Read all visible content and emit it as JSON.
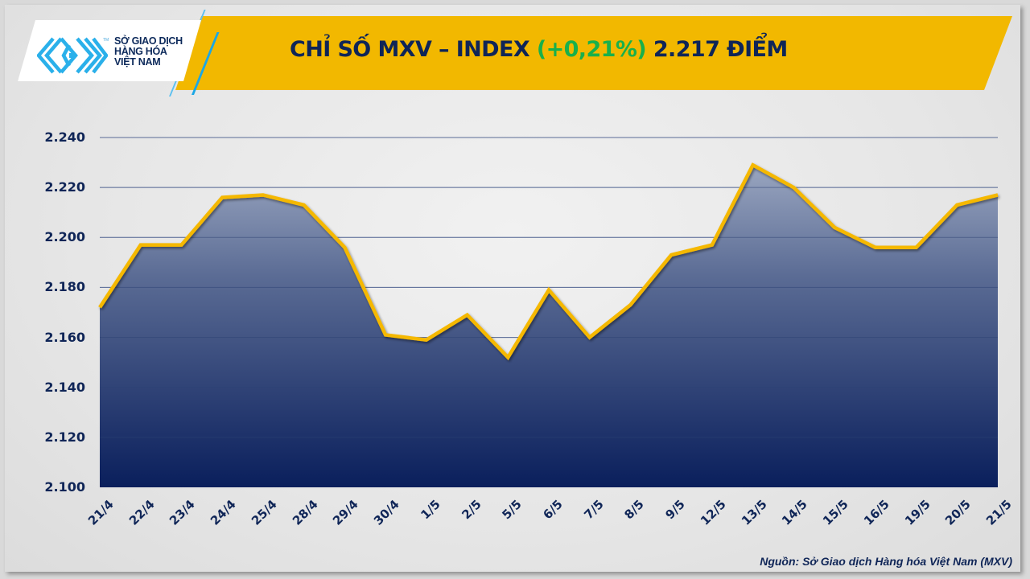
{
  "header": {
    "logo": {
      "icon": "mxv-logo-icon",
      "line1": "SỞ GIAO DỊCH",
      "line2": "HÀNG HÓA",
      "line3": "VIỆT NAM",
      "tm": "TM"
    },
    "title_prefix": "CHỈ SỐ MXV – INDEX ",
    "title_change": "(+0,21%)",
    "title_suffix": " 2.217 ĐIỂM"
  },
  "colors": {
    "banner": "#f2b800",
    "title_text": "#0f2557",
    "change_positive": "#19b04b",
    "line": "#f5b800",
    "area_top": "#8c9bb8",
    "area_bottom": "#0a1f5c",
    "grid": "#8e9bbd"
  },
  "y_axis": {
    "ticks": [
      "2.240",
      "2.220",
      "2.200",
      "2.180",
      "2.160",
      "2.140",
      "2.120",
      "2.100"
    ]
  },
  "x_axis": {
    "ticks": [
      "21/4",
      "22/4",
      "23/4",
      "24/4",
      "25/4",
      "28/4",
      "29/4",
      "30/4",
      "1/5",
      "2/5",
      "5/5",
      "6/5",
      "7/5",
      "8/5",
      "9/5",
      "12/5",
      "13/5",
      "14/5",
      "15/5",
      "16/5",
      "19/5",
      "20/5",
      "21/5"
    ]
  },
  "source": "Nguồn: Sở Giao dịch Hàng hóa Việt Nam (MXV)",
  "chart_data": {
    "type": "area",
    "title": "CHỈ SỐ MXV – INDEX (+0,21%) 2.217 ĐIỂM",
    "xlabel": "",
    "ylabel": "",
    "categories": [
      "21/4",
      "22/4",
      "23/4",
      "24/4",
      "25/4",
      "28/4",
      "29/4",
      "30/4",
      "1/5",
      "2/5",
      "5/5",
      "6/5",
      "7/5",
      "8/5",
      "9/5",
      "12/5",
      "13/5",
      "14/5",
      "15/5",
      "16/5",
      "19/5",
      "20/5",
      "21/5"
    ],
    "series": [
      {
        "name": "MXV-Index",
        "values": [
          2172,
          2197,
          2197,
          2216,
          2217,
          2213,
          2196,
          2161,
          2159,
          2169,
          2152,
          2179,
          2160,
          2173,
          2193,
          2197,
          2229,
          2220,
          2204,
          2196,
          2196,
          2213,
          2217
        ]
      }
    ],
    "ylim": [
      2100,
      2240
    ],
    "yticks": [
      2100,
      2120,
      2140,
      2160,
      2180,
      2200,
      2220,
      2240
    ],
    "grid": true,
    "legend": "none",
    "annotations": [
      "(+0,21%)",
      "2.217 ĐIỂM"
    ]
  }
}
